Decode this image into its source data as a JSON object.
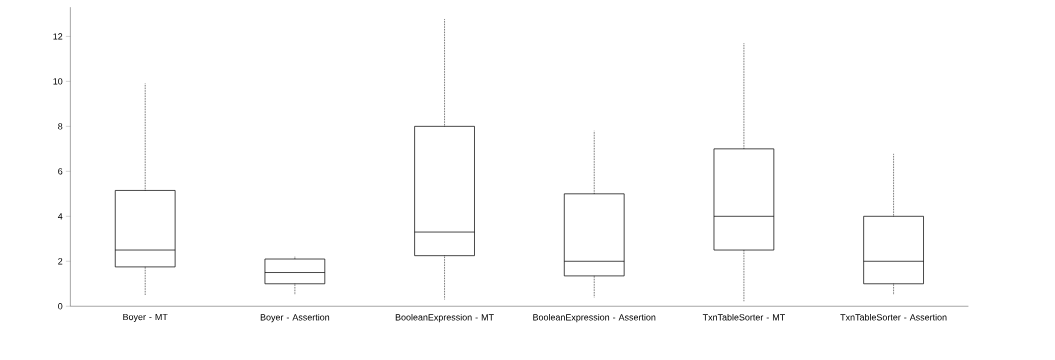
{
  "chart_data": {
    "type": "box",
    "categories": [
      "Boyer - MT",
      "Boyer - Assertion",
      "BooleanExpression - MT",
      "BooleanExpression - Assertion",
      "TxnTableSorter - MT",
      "TxnTableSorter - Assertion"
    ],
    "boxes": [
      {
        "low": 0.5,
        "q1": 1.75,
        "median": 2.5,
        "q3": 5.15,
        "high": 9.9
      },
      {
        "low": 0.5,
        "q1": 1.0,
        "median": 1.5,
        "q3": 2.1,
        "high": 2.2
      },
      {
        "low": 0.3,
        "q1": 2.25,
        "median": 3.3,
        "q3": 8.0,
        "high": 12.8
      },
      {
        "low": 0.4,
        "q1": 1.35,
        "median": 2.0,
        "q3": 5.0,
        "high": 7.8
      },
      {
        "low": 0.2,
        "q1": 2.5,
        "median": 4.0,
        "q3": 7.0,
        "high": 11.7
      },
      {
        "low": 0.5,
        "q1": 1.0,
        "median": 2.0,
        "q3": 4.0,
        "high": 6.8
      }
    ],
    "color": "#000000",
    "ylim": [
      0,
      13.3
    ],
    "yticks": [
      0,
      2,
      4,
      6,
      8,
      10,
      12
    ],
    "grid": false
  }
}
